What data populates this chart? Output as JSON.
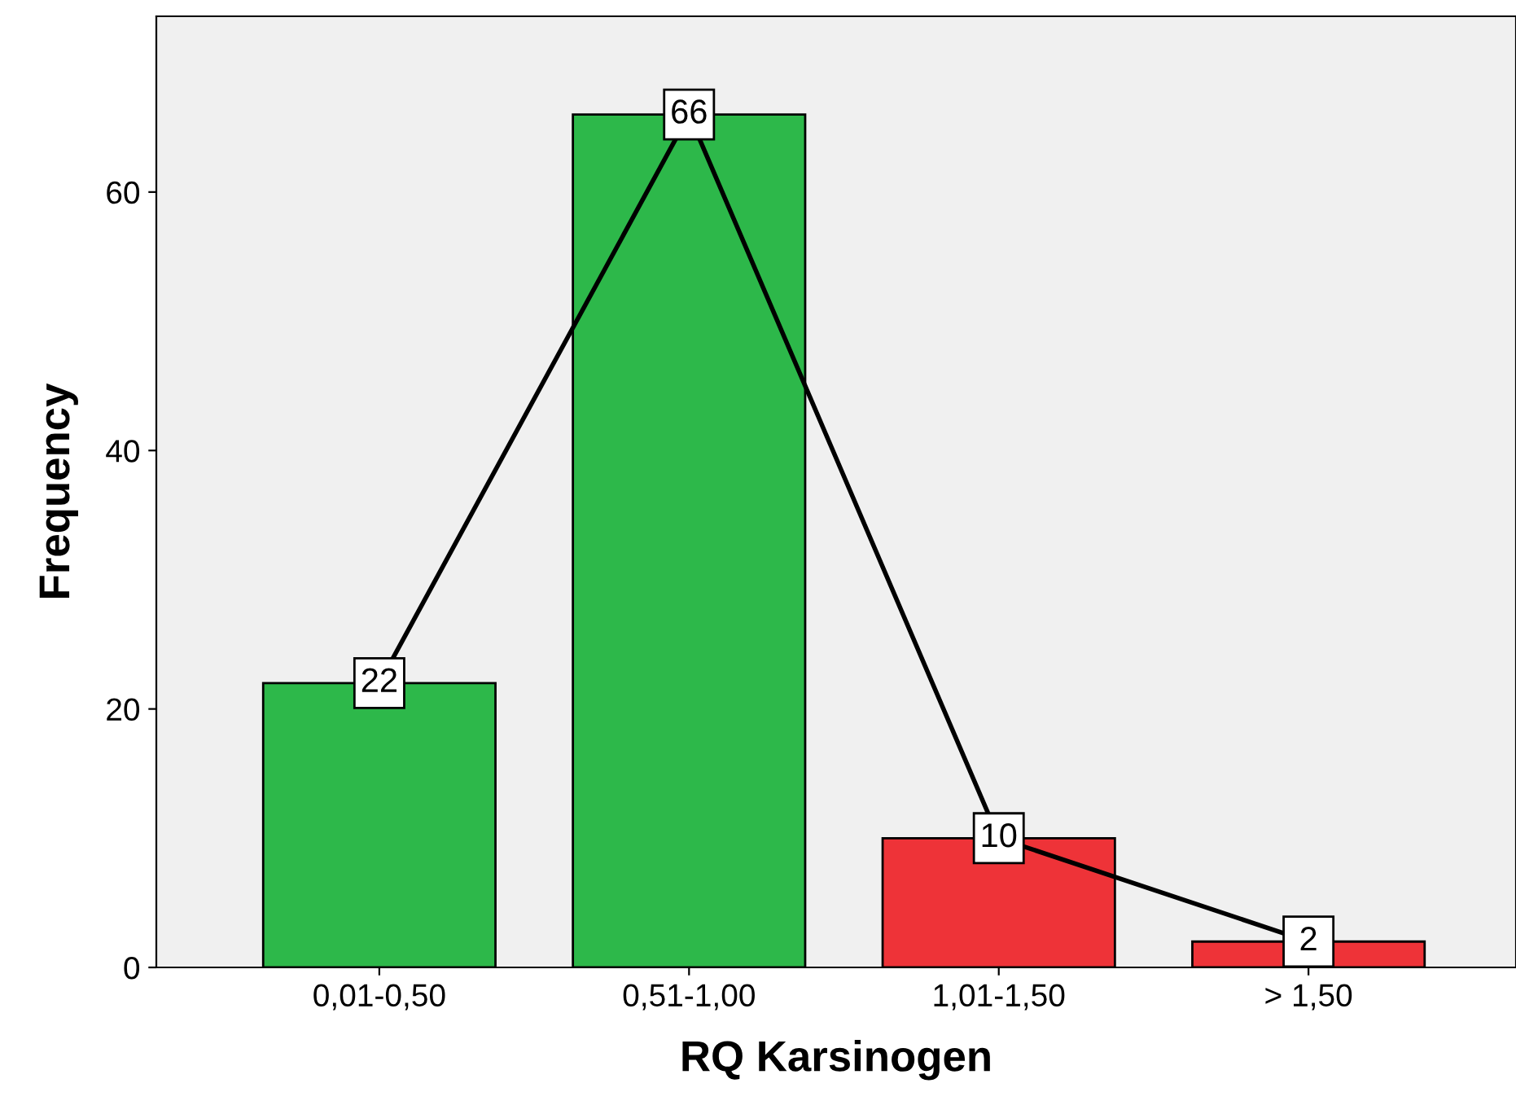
{
  "chart_data": {
    "type": "bar",
    "xlabel": "RQ Karsinogen",
    "ylabel": "Frequency",
    "categories": [
      "0,01-0,50",
      "0,51-1,00",
      "1,01-1,50",
      "> 1,50"
    ],
    "series": [
      {
        "colors": [
          "#2db84a",
          "#2db84a",
          "#ee3338",
          "#ee3338"
        ],
        "values": [
          22,
          66,
          10,
          2
        ]
      },
      {
        "type": "line",
        "color": "#000000",
        "values": [
          22,
          66,
          10,
          2
        ],
        "data_labels": true,
        "marker": "square"
      }
    ],
    "ylim": [
      0,
      73.6
    ],
    "yticks": [
      0,
      20,
      40,
      60
    ],
    "grid": false,
    "legend": false
  }
}
